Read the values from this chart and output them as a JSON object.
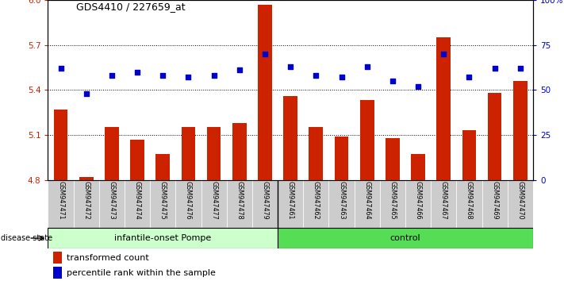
{
  "title": "GDS4410 / 227659_at",
  "samples": [
    "GSM947471",
    "GSM947472",
    "GSM947473",
    "GSM947474",
    "GSM947475",
    "GSM947476",
    "GSM947477",
    "GSM947478",
    "GSM947479",
    "GSM947461",
    "GSM947462",
    "GSM947463",
    "GSM947464",
    "GSM947465",
    "GSM947466",
    "GSM947467",
    "GSM947468",
    "GSM947469",
    "GSM947470"
  ],
  "bar_values": [
    5.27,
    4.82,
    5.15,
    5.07,
    4.97,
    5.15,
    5.15,
    5.18,
    5.97,
    5.36,
    5.15,
    5.09,
    5.33,
    5.08,
    4.97,
    5.75,
    5.13,
    5.38,
    5.46
  ],
  "dot_values": [
    62,
    48,
    58,
    60,
    58,
    57,
    58,
    61,
    70,
    63,
    58,
    57,
    63,
    55,
    52,
    70,
    57,
    62,
    62
  ],
  "group1_count": 9,
  "group2_count": 10,
  "group1_label": "infantile-onset Pompe",
  "group2_label": "control",
  "bar_color": "#cc2200",
  "dot_color": "#0000cc",
  "ylim_left": [
    4.8,
    6.0
  ],
  "ylim_right": [
    0,
    100
  ],
  "yticks_left": [
    4.8,
    5.1,
    5.4,
    5.7,
    6.0
  ],
  "yticks_right": [
    0,
    25,
    50,
    75,
    100
  ],
  "hlines": [
    5.1,
    5.4,
    5.7
  ],
  "bar_width": 0.55,
  "group1_bg": "#ccffcc",
  "group2_bg": "#55dd55",
  "tick_label_area_bg": "#cccccc",
  "legend_bar_label": "transformed count",
  "legend_dot_label": "percentile rank within the sample",
  "disease_state_label": "disease state"
}
